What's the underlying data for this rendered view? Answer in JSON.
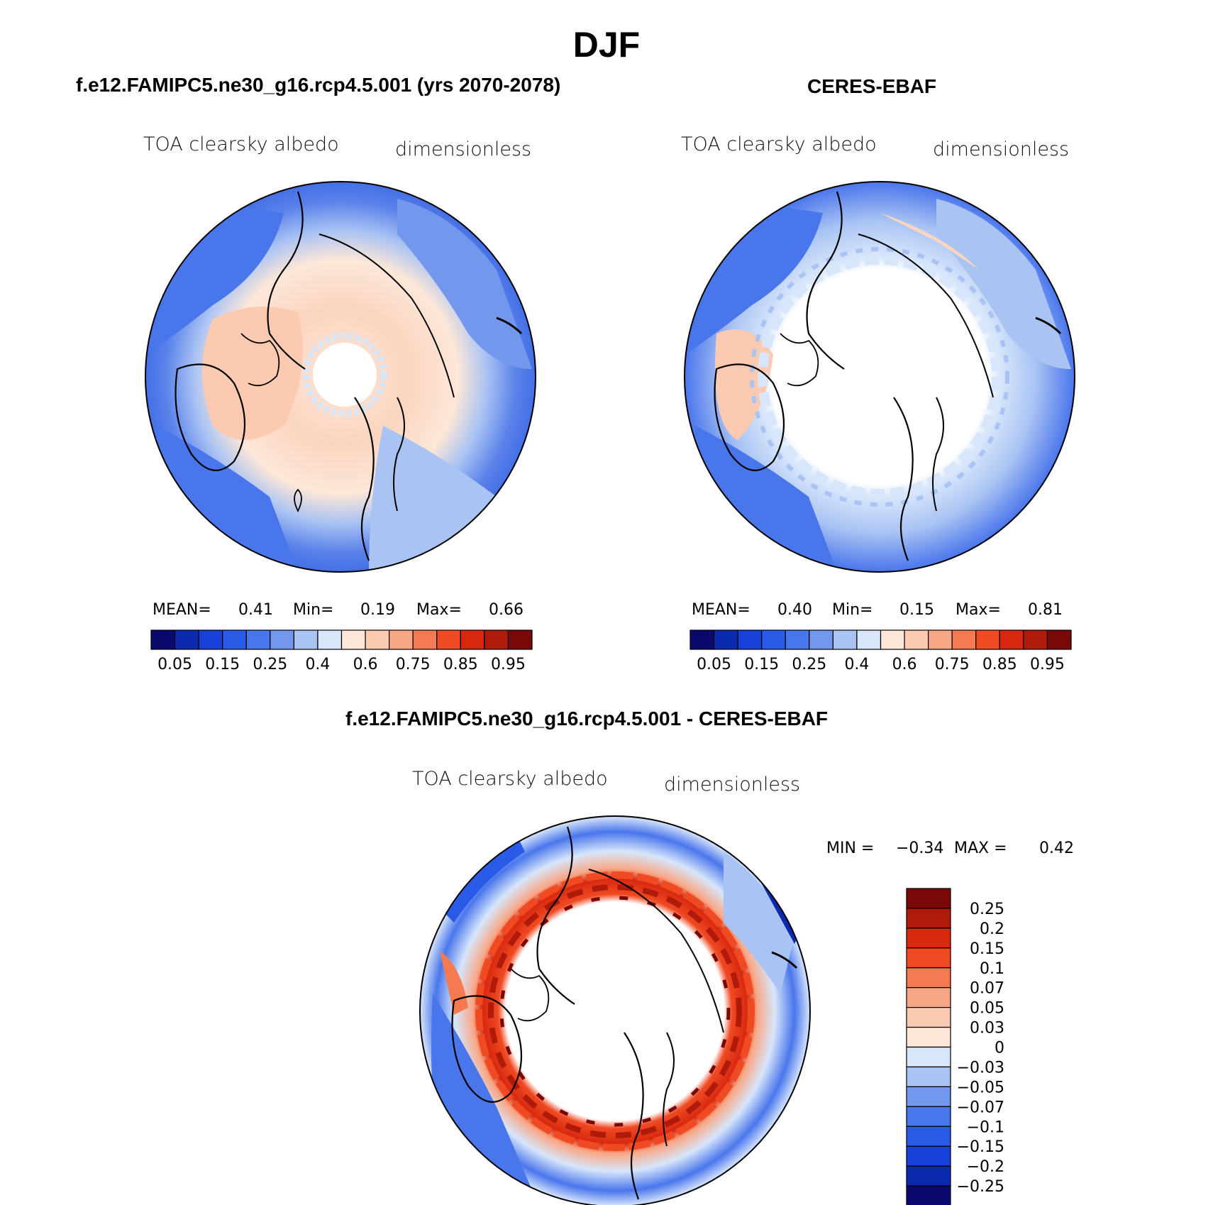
{
  "figure": {
    "title": "DJF",
    "panels": [
      {
        "title": "f.e12.FAMIPC5.ne30_g16.rcp4.5.001 (yrs 2070-2078)",
        "variable": "TOA clearsky albedo",
        "units": "dimensionless",
        "stats": {
          "mean_label": "MEAN=",
          "mean": "0.41",
          "min_label": "Min=",
          "min": "0.19",
          "max_label": "Max=",
          "max": "0.66"
        }
      },
      {
        "title": "CERES-EBAF",
        "variable": "TOA clearsky albedo",
        "units": "dimensionless",
        "stats": {
          "mean_label": "MEAN=",
          "mean": "0.40",
          "min_label": "Min=",
          "min": "0.15",
          "max_label": "Max=",
          "max": "0.81"
        }
      },
      {
        "title": "f.e12.FAMIPC5.ne30_g16.rcp4.5.001 - CERES-EBAF",
        "variable": "TOA clearsky albedo",
        "units": "dimensionless",
        "stats": {
          "min_label": "MIN =",
          "min": "−0.34",
          "max_label": "MAX =",
          "max": "0.42"
        }
      }
    ],
    "colorbar_abs": {
      "colors": [
        "#0a0a6e",
        "#0b2ab0",
        "#1640d8",
        "#2a5ae8",
        "#4a76ec",
        "#7497ee",
        "#a9c3f3",
        "#d7e6fb",
        "#fde7d8",
        "#fbcab0",
        "#f8a786",
        "#f57a52",
        "#ef4a22",
        "#d82810",
        "#b01a0a",
        "#7a0808"
      ],
      "tick_labels": [
        "0.05",
        "0.15",
        "0.25",
        "0.4",
        "0.6",
        "0.75",
        "0.85",
        "0.95"
      ]
    },
    "colorbar_diff": {
      "colors": [
        "#7a0808",
        "#b01a0a",
        "#d82810",
        "#ef4a22",
        "#f57a52",
        "#f8a786",
        "#fbcab0",
        "#fde7d8",
        "#d7e6fb",
        "#a9c3f3",
        "#7497ee",
        "#4a76ec",
        "#2a5ae8",
        "#1640d8",
        "#0b2ab0",
        "#0a0a6e"
      ],
      "tick_labels": [
        "0.25",
        "0.2",
        "0.15",
        "0.1",
        "0.07",
        "0.05",
        "0.03",
        "0",
        "−0.03",
        "−0.05",
        "−0.07",
        "−0.1",
        "−0.15",
        "−0.2",
        "−0.25"
      ]
    }
  }
}
